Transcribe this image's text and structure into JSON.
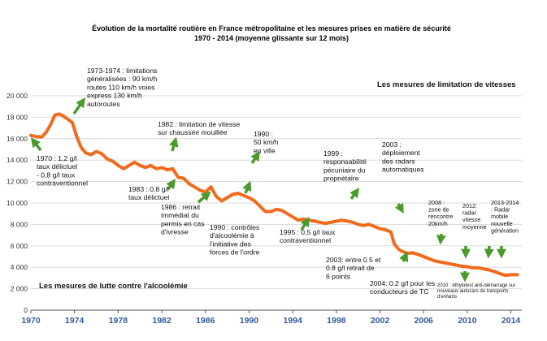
{
  "chart_data": {
    "type": "line",
    "title": "Évolution de la mortalité routière en France métropolitaine et les mesures prises en matière de sécurité",
    "subtitle": "1970 - 2014 (moyenne glissante sur 12 mois)",
    "xlabel": "",
    "ylabel": "",
    "xlim": [
      1970,
      2015
    ],
    "ylim": [
      0,
      20000
    ],
    "x_ticks": [
      "1970",
      "1974",
      "1978",
      "1982",
      "1986",
      "1990",
      "1994",
      "1998",
      "2002",
      "2006",
      "2010",
      "2014"
    ],
    "y_ticks": [
      "0",
      "2 000",
      "4 000",
      "6 000",
      "8 000",
      "10 000",
      "12 000",
      "14 000",
      "16 000",
      "18 000",
      "20 000"
    ],
    "grid": "horizontal",
    "line_color": "#f26a1b",
    "arrow_color": "#4a9a2c",
    "section_labels": {
      "speed": "Les mesures de limitation de vitesses",
      "alcohol": "Les mesures de lutte contre l'alcoolémie"
    },
    "series": [
      {
        "values": [
          [
            1970.0,
            16300
          ],
          [
            1970.5,
            16200
          ],
          [
            1971.0,
            16150
          ],
          [
            1971.4,
            16600
          ],
          [
            1971.8,
            17300
          ],
          [
            1972.2,
            18200
          ],
          [
            1972.6,
            18300
          ],
          [
            1973.0,
            18100
          ],
          [
            1973.4,
            17800
          ],
          [
            1973.8,
            17500
          ],
          [
            1974.2,
            16200
          ],
          [
            1974.6,
            15200
          ],
          [
            1975.0,
            14700
          ],
          [
            1975.5,
            14500
          ],
          [
            1976.0,
            14800
          ],
          [
            1976.5,
            14600
          ],
          [
            1977.0,
            14100
          ],
          [
            1977.5,
            13900
          ],
          [
            1978.0,
            13500
          ],
          [
            1978.5,
            13200
          ],
          [
            1979.0,
            13500
          ],
          [
            1979.5,
            13800
          ],
          [
            1980.0,
            13500
          ],
          [
            1980.5,
            13300
          ],
          [
            1981.0,
            13500
          ],
          [
            1981.5,
            13200
          ],
          [
            1982.0,
            13300
          ],
          [
            1982.5,
            13100
          ],
          [
            1983.0,
            13200
          ],
          [
            1983.5,
            12400
          ],
          [
            1984.0,
            12300
          ],
          [
            1984.5,
            11800
          ],
          [
            1985.0,
            11500
          ],
          [
            1985.5,
            11200
          ],
          [
            1986.0,
            11000
          ],
          [
            1986.5,
            11500
          ],
          [
            1987.0,
            10600
          ],
          [
            1987.5,
            10200
          ],
          [
            1988.0,
            10500
          ],
          [
            1988.5,
            10800
          ],
          [
            1989.0,
            10900
          ],
          [
            1989.5,
            10700
          ],
          [
            1990.0,
            10500
          ],
          [
            1990.5,
            10200
          ],
          [
            1991.0,
            9700
          ],
          [
            1991.5,
            9200
          ],
          [
            1992.0,
            9200
          ],
          [
            1992.5,
            9400
          ],
          [
            1993.0,
            9300
          ],
          [
            1993.5,
            9000
          ],
          [
            1994.0,
            8700
          ],
          [
            1994.5,
            8400
          ],
          [
            1995.0,
            8500
          ],
          [
            1995.5,
            8400
          ],
          [
            1996.0,
            8300
          ],
          [
            1996.5,
            8200
          ],
          [
            1997.0,
            8100
          ],
          [
            1997.5,
            8200
          ],
          [
            1998.0,
            8300
          ],
          [
            1998.5,
            8400
          ],
          [
            1999.0,
            8300
          ],
          [
            1999.5,
            8200
          ],
          [
            2000.0,
            8000
          ],
          [
            2000.5,
            7900
          ],
          [
            2001.0,
            8000
          ],
          [
            2001.5,
            7800
          ],
          [
            2002.0,
            7600
          ],
          [
            2002.5,
            7500
          ],
          [
            2003.0,
            7300
          ],
          [
            2003.3,
            6200
          ],
          [
            2003.7,
            5700
          ],
          [
            2004.0,
            5500
          ],
          [
            2004.5,
            5300
          ],
          [
            2005.0,
            5350
          ],
          [
            2005.5,
            5200
          ],
          [
            2006.0,
            5000
          ],
          [
            2006.5,
            4800
          ],
          [
            2007.0,
            4600
          ],
          [
            2007.5,
            4500
          ],
          [
            2008.0,
            4400
          ],
          [
            2008.5,
            4300
          ],
          [
            2009.0,
            4200
          ],
          [
            2009.5,
            4100
          ],
          [
            2010.0,
            4050
          ],
          [
            2010.5,
            3950
          ],
          [
            2011.0,
            3950
          ],
          [
            2011.5,
            3850
          ],
          [
            2012.0,
            3750
          ],
          [
            2012.5,
            3600
          ],
          [
            2013.0,
            3400
          ],
          [
            2013.5,
            3250
          ],
          [
            2014.0,
            3300
          ],
          [
            2014.6,
            3300
          ]
        ]
      }
    ],
    "annotations": [
      {
        "lines": [
          "1970 : 1,2 g/l",
          "taux délictuel",
          "- 0,8 g/l  taux",
          "contraventionnel"
        ]
      },
      {
        "lines": [
          "1973-1974 : limitations",
          "généralisées : 90 km/h",
          "routes 110 km/h voies",
          "express 130 km/h",
          "autoroutes"
        ]
      },
      {
        "lines": [
          "1982 : limitation de vitesse",
          "sur chaussée mouillée"
        ]
      },
      {
        "lines": [
          "1983 : 0,8 g/l",
          "taux délictuel"
        ]
      },
      {
        "lines": [
          "1986 : retrait",
          "immédiat du",
          "permis  en cas",
          "d'ivresse"
        ]
      },
      {
        "lines": [
          "1990 :",
          "50 km/h",
          "en ville"
        ]
      },
      {
        "lines": [
          "1990 : contrôles",
          "d'alcoolémie à",
          "l'initiative des",
          "forces de l'ordre"
        ]
      },
      {
        "lines": [
          "1995 : 0,5 g/l  taux",
          "contraventionnel"
        ]
      },
      {
        "lines": [
          "1999 :",
          "responsabilité",
          "pécuniaire du",
          "propriétaire"
        ]
      },
      {
        "lines": [
          "2003 :",
          "déploiement",
          "des  radars",
          "automatiques"
        ]
      },
      {
        "lines": [
          "2003: entre 0.5 et",
          "0.8 g/l  retrait de",
          "6 points"
        ]
      },
      {
        "lines": [
          "2004: 0.2 g/l  pour les",
          "conducteurs de TC"
        ]
      },
      {
        "lines": [
          "2008 :",
          "zone de",
          "rencontre",
          "20km/h"
        ]
      },
      {
        "lines": [
          "2012:",
          "radar",
          "vitesse",
          "moyenne"
        ]
      },
      {
        "lines": [
          "2013-2014",
          ": Radar",
          "mobile",
          "nouvelle",
          "génération"
        ]
      },
      {
        "lines": [
          "2010 : éthylotest anti-démarrage sur",
          "nouveaux autocars de transports",
          "d'enfants"
        ]
      }
    ]
  }
}
